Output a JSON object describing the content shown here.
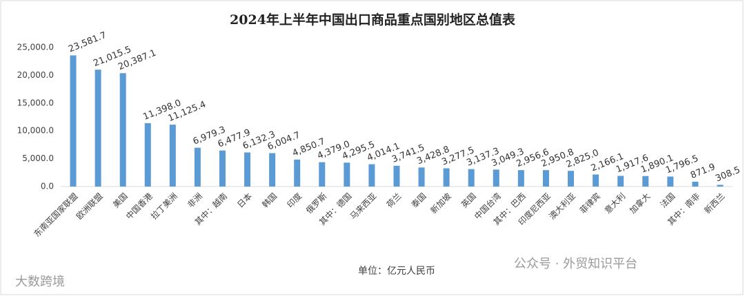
{
  "chart_data": {
    "type": "bar",
    "title": "2024年上半年中国出口商品重点国别地区总值表",
    "unit_note": "单位：亿元人民币",
    "watermarks": [
      "大数跨境",
      "公众号 · 外贸知识平台"
    ],
    "color": "#5b9bd5",
    "categories": [
      "东南亚国家联盟",
      "欧洲联盟",
      "美国",
      "中国香港",
      "拉丁美洲",
      "非洲",
      "其中：越南",
      "日本",
      "韩国",
      "印度",
      "俄罗斯",
      "其中：德国",
      "马来西亚",
      "荷兰",
      "泰国",
      "新加坡",
      "英国",
      "中国台湾",
      "其中：巴西",
      "印度尼西亚",
      "澳大利亚",
      "菲律宾",
      "意大利",
      "加拿大",
      "法国",
      "其中：南非",
      "新西兰"
    ],
    "values": [
      23581.7,
      21015.5,
      20387.1,
      11398.0,
      11125.4,
      6979.3,
      6477.9,
      6132.3,
      6004.7,
      4850.7,
      4379.0,
      4295.5,
      4014.1,
      3741.5,
      3428.8,
      3277.5,
      3137.3,
      3049.3,
      2956.6,
      2950.8,
      2825.0,
      2166.1,
      1917.6,
      1890.1,
      1796.5,
      871.9,
      308.5
    ],
    "value_labels": [
      "23,581.7",
      "21,015.5",
      "20,387.1",
      "11,398.0",
      "11,125.4",
      "6,979.3",
      "6,477.9",
      "6,132.3",
      "6,004.7",
      "4,850.7",
      "4,379.0",
      "4,295.5",
      "4,014.1",
      "3,741.5",
      "3,428.8",
      "3,277.5",
      "3,137.3",
      "3,049.3",
      "2,956.6",
      "2,950.8",
      "2,825.0",
      "2,166.1",
      "1,917.6",
      "1,890.1",
      "1,796.5",
      "871.9",
      "308.5"
    ],
    "ylim": [
      0,
      25000
    ],
    "yticks": [
      {
        "value": 0,
        "label": "0.0"
      },
      {
        "value": 5000,
        "label": "5,000.0"
      },
      {
        "value": 10000,
        "label": "10,000.0"
      },
      {
        "value": 15000,
        "label": "15,000.0"
      },
      {
        "value": 20000,
        "label": "20,000.0"
      },
      {
        "value": 25000,
        "label": "25,000.0"
      }
    ],
    "grid": false
  }
}
